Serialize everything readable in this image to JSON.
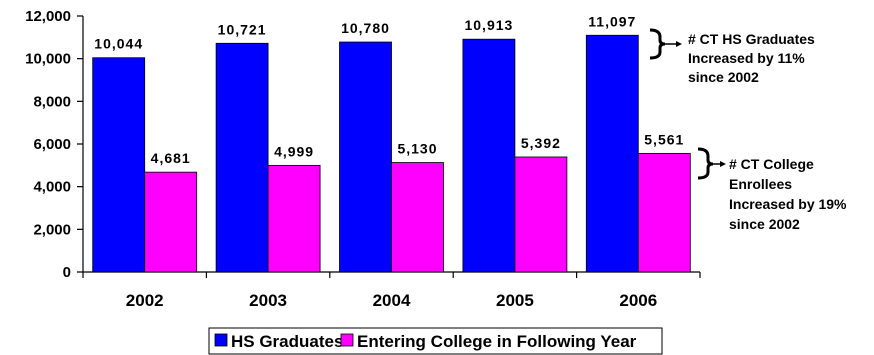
{
  "chart_data": {
    "type": "bar",
    "categories": [
      "2002",
      "2003",
      "2004",
      "2005",
      "2006"
    ],
    "series": [
      {
        "name": "HS Graduates",
        "values": [
          10044,
          10721,
          10780,
          10913,
          11097
        ],
        "color": "#0000ff",
        "labels": [
          "10,044",
          "10,721",
          "10,780",
          "10,913",
          "11,097"
        ]
      },
      {
        "name": "Entering College in Following Year",
        "values": [
          4681,
          4999,
          5130,
          5392,
          5561
        ],
        "color": "#ff00ff",
        "labels": [
          "4,681",
          "4,999",
          "5,130",
          "5,392",
          "5,561"
        ]
      }
    ],
    "ylim": [
      0,
      12000
    ],
    "yticks": [
      0,
      2000,
      4000,
      6000,
      8000,
      10000,
      12000
    ],
    "ytick_labels": [
      "0",
      "2,000",
      "4,000",
      "6,000",
      "8,000",
      "10,000",
      "12,000"
    ],
    "grid": false,
    "legend_position": "bottom",
    "annotations": [
      {
        "lines": [
          "# CT HS Graduates",
          "Increased by 11%",
          "since 2002"
        ]
      },
      {
        "lines": [
          "# CT College",
          "Enrollees",
          "Increased by 19%",
          "since 2002"
        ]
      }
    ]
  }
}
